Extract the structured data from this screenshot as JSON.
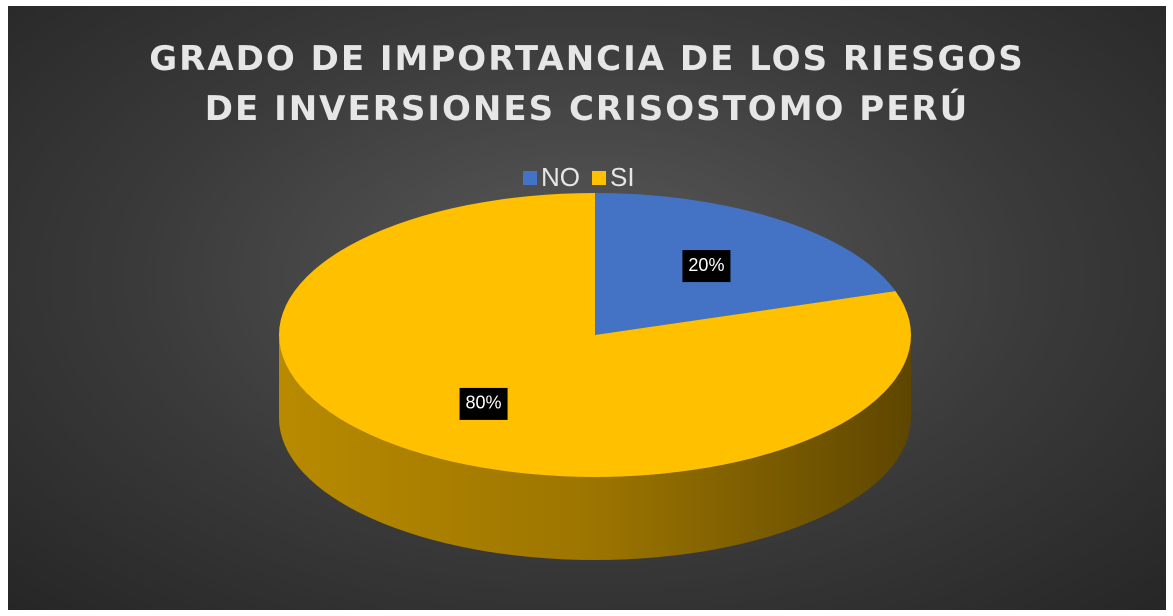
{
  "chart_data": {
    "type": "pie",
    "title": "GRADO DE IMPORTANCIA DE LOS RIESGOS DE INVERSIONES CRISOSTOMO PERÚ",
    "categories": [
      "NO",
      "SI"
    ],
    "values": [
      20,
      80
    ],
    "value_labels": [
      "20%",
      "80%"
    ],
    "colors": [
      "#4472c4",
      "#ffc000"
    ],
    "legend": "top"
  }
}
